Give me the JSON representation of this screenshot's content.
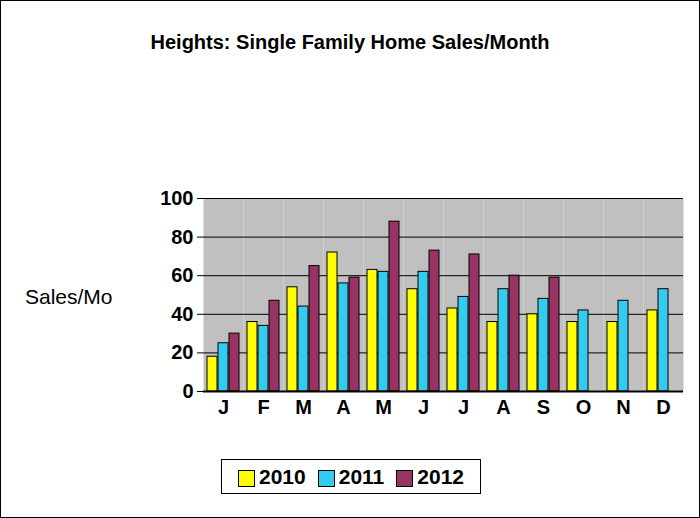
{
  "chart_data": {
    "type": "bar",
    "title": "Heights: Single Family Home Sales/Month",
    "y_label": "Sales/Mo",
    "categories": [
      "J",
      "F",
      "M",
      "A",
      "M",
      "J",
      "J",
      "A",
      "S",
      "O",
      "N",
      "D"
    ],
    "series": [
      {
        "name": "2010",
        "color": "#ffff00",
        "values": [
          18,
          36,
          54,
          72,
          63,
          53,
          43,
          36,
          40,
          36,
          36,
          42
        ]
      },
      {
        "name": "2011",
        "color": "#33ccee",
        "values": [
          25,
          34,
          44,
          56,
          62,
          62,
          49,
          53,
          48,
          42,
          47,
          53
        ]
      },
      {
        "name": "2012",
        "color": "#993366",
        "values": [
          30,
          47,
          65,
          59,
          88,
          73,
          71,
          60,
          59,
          null,
          null,
          null
        ]
      }
    ],
    "ylim": [
      0,
      100
    ],
    "yticks": [
      0,
      20,
      40,
      60,
      80,
      100
    ],
    "grid": true,
    "legend": "bottom"
  }
}
